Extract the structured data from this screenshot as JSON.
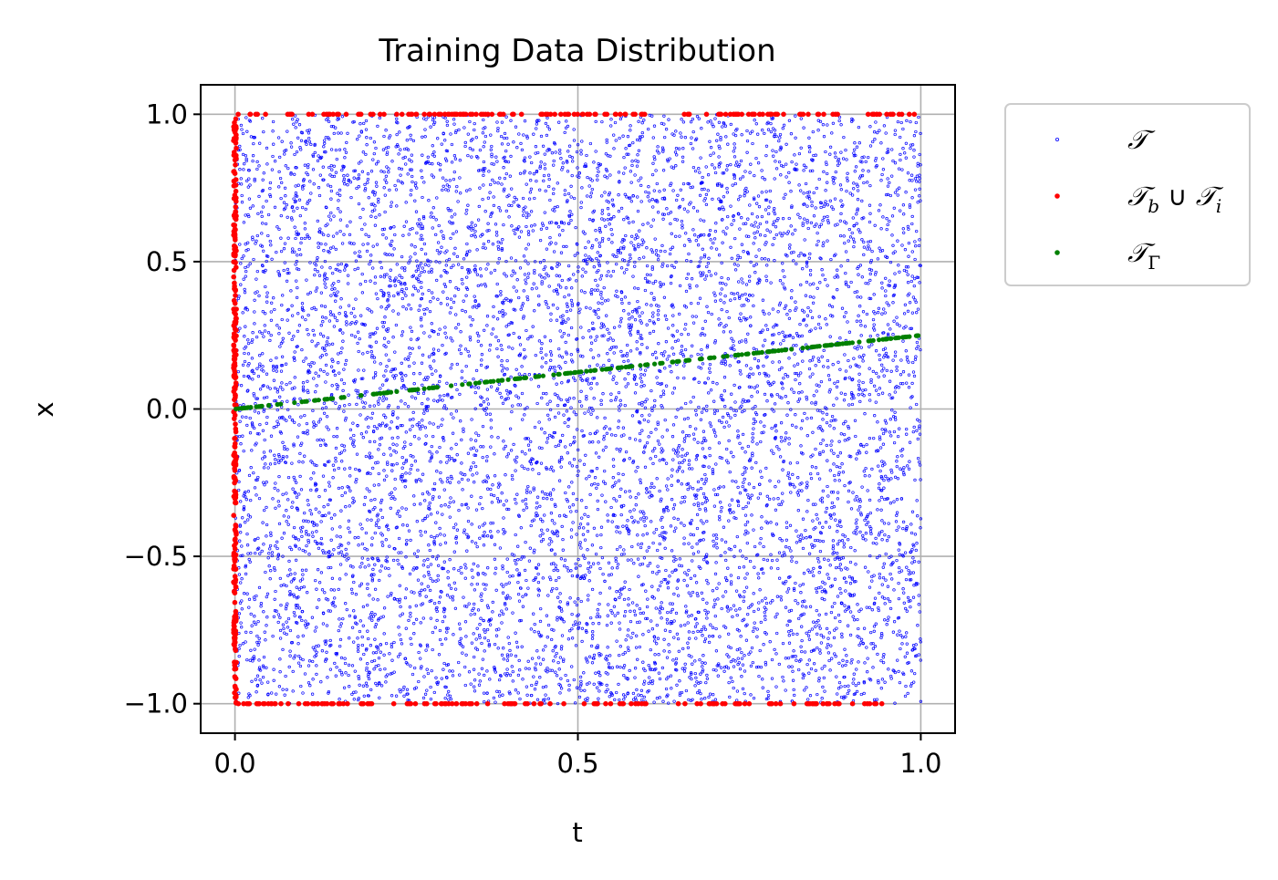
{
  "chart_data": {
    "type": "scatter",
    "title": "Training Data Distribution",
    "xlabel": "t",
    "ylabel": "x",
    "xlim": [
      -0.05,
      1.05
    ],
    "ylim": [
      -1.1,
      1.1
    ],
    "xticks": [
      0.0,
      0.5,
      1.0
    ],
    "xtick_labels": [
      "0.0",
      "0.5",
      "1.0"
    ],
    "yticks": [
      -1.0,
      -0.5,
      0.0,
      0.5,
      1.0
    ],
    "ytick_labels": [
      "−1.0",
      "−0.5",
      "0.0",
      "0.5",
      "1.0"
    ],
    "grid": true,
    "legend_position": "outside-right-top",
    "series": [
      {
        "name": "𝒯",
        "legend_main": "𝒯",
        "color": "#0000ff",
        "marker": "small-open-dot",
        "distribution": "uniform random over t in [0, 1], x in [-1, 1]",
        "count": 8000
      },
      {
        "name": "𝒯_b ∪ 𝒯_i",
        "legend_main": "𝒯",
        "legend_sub1": "b",
        "legend_union": " ∪ ",
        "legend_main2": "𝒯",
        "legend_sub2": "i",
        "color": "#ff0000",
        "marker": "filled-dot",
        "segments": [
          {
            "t": [
              0,
              0
            ],
            "x": [
              -1,
              1
            ]
          },
          {
            "t": [
              0,
              1
            ],
            "x": [
              1,
              1
            ]
          },
          {
            "t": [
              0,
              0.95
            ],
            "x": [
              -1,
              -1
            ]
          }
        ]
      },
      {
        "name": "𝒯_Γ",
        "legend_main": "𝒯",
        "legend_sub1": "Γ",
        "color": "#008000",
        "marker": "filled-dot",
        "line": {
          "t": [
            0,
            1
          ],
          "x": [
            0,
            0.25
          ]
        }
      }
    ]
  }
}
